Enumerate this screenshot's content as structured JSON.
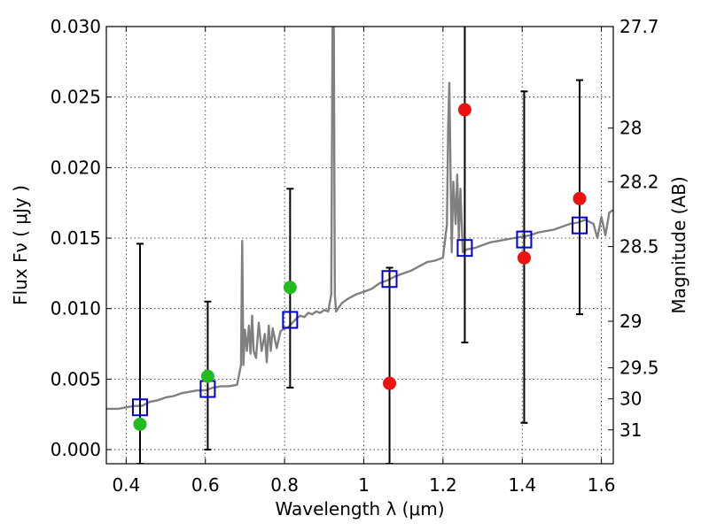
{
  "chart_data": {
    "type": "scatter",
    "xlabel": "Wavelength  λ (μm)",
    "ylabel": "Flux  Fν  ( μJy )",
    "ylabel_right": "Magnitude (AB)",
    "xlim": [
      0.35,
      1.63
    ],
    "ylim": [
      -0.001,
      0.03
    ],
    "x_ticks": [
      0.4,
      0.6,
      0.8,
      1.0,
      1.2,
      1.4,
      1.6
    ],
    "x_tick_labels": [
      "0.4",
      "0.6",
      "0.8",
      "1",
      "1.2",
      "1.4",
      "1.6"
    ],
    "y_ticks": [
      0.0,
      0.005,
      0.01,
      0.015,
      0.02,
      0.025,
      0.03
    ],
    "y_tick_labels": [
      "0.000",
      "0.005",
      "0.010",
      "0.015",
      "0.020",
      "0.025",
      "0.030"
    ],
    "right_ticks": [
      {
        "label": "27.7",
        "flux": 0.03
      },
      {
        "label": "28",
        "flux": 0.0228
      },
      {
        "label": "28.2",
        "flux": 0.019
      },
      {
        "label": "28.5",
        "flux": 0.0144
      },
      {
        "label": "29",
        "flux": 0.0091
      },
      {
        "label": "29.5",
        "flux": 0.0058
      },
      {
        "label": "30",
        "flux": 0.0036
      },
      {
        "label": "31",
        "flux": 0.0014
      }
    ],
    "grid": true,
    "colors": {
      "spectrum": "#808080",
      "green": "#22bb22",
      "red": "#ee1111",
      "model": "#0000cc",
      "errorbar": "#000000"
    },
    "model_points": [
      {
        "x": 0.435,
        "y": 0.003
      },
      {
        "x": 0.606,
        "y": 0.0043
      },
      {
        "x": 0.814,
        "y": 0.0092
      },
      {
        "x": 1.065,
        "y": 0.0121
      },
      {
        "x": 1.255,
        "y": 0.0143
      },
      {
        "x": 1.405,
        "y": 0.0149
      },
      {
        "x": 1.545,
        "y": 0.0159
      }
    ],
    "observed_points": [
      {
        "x": 0.435,
        "y": 0.0018,
        "err_low": -0.001,
        "err_high": 0.0146,
        "color": "green"
      },
      {
        "x": 0.606,
        "y": 0.0052,
        "err_low": 0.0,
        "err_high": 0.0105,
        "color": "green"
      },
      {
        "x": 0.814,
        "y": 0.0115,
        "err_low": 0.0044,
        "err_high": 0.0185,
        "color": "green"
      },
      {
        "x": 1.065,
        "y": 0.0047,
        "err_low": -0.001,
        "err_high": 0.0129,
        "color": "red"
      },
      {
        "x": 1.255,
        "y": 0.0241,
        "err_low": 0.0076,
        "err_high": 0.031,
        "color": "red"
      },
      {
        "x": 1.405,
        "y": 0.0136,
        "err_low": 0.0019,
        "err_high": 0.0254,
        "color": "red"
      },
      {
        "x": 1.545,
        "y": 0.0178,
        "err_low": 0.0096,
        "err_high": 0.0262,
        "color": "red"
      }
    ],
    "spectrum": {
      "x": [
        0.35,
        0.38,
        0.4,
        0.42,
        0.44,
        0.46,
        0.48,
        0.5,
        0.52,
        0.54,
        0.56,
        0.58,
        0.6,
        0.62,
        0.64,
        0.66,
        0.68,
        0.69,
        0.693,
        0.696,
        0.7,
        0.705,
        0.71,
        0.714,
        0.718,
        0.722,
        0.728,
        0.735,
        0.742,
        0.75,
        0.755,
        0.76,
        0.765,
        0.77,
        0.78,
        0.79,
        0.8,
        0.81,
        0.82,
        0.83,
        0.84,
        0.85,
        0.86,
        0.87,
        0.88,
        0.89,
        0.9,
        0.91,
        0.918,
        0.921,
        0.924,
        0.927,
        0.93,
        0.935,
        0.945,
        0.96,
        0.98,
        1.0,
        1.02,
        1.04,
        1.06,
        1.08,
        1.1,
        1.12,
        1.14,
        1.16,
        1.18,
        1.2,
        1.21,
        1.213,
        1.216,
        1.219,
        1.222,
        1.226,
        1.232,
        1.236,
        1.24,
        1.244,
        1.25,
        1.26,
        1.28,
        1.3,
        1.32,
        1.34,
        1.36,
        1.38,
        1.4,
        1.42,
        1.44,
        1.46,
        1.48,
        1.5,
        1.52,
        1.54,
        1.56,
        1.58,
        1.59,
        1.6,
        1.61,
        1.62,
        1.63
      ],
      "y": [
        0.0029,
        0.0029,
        0.003,
        0.0031,
        0.0031,
        0.0034,
        0.0035,
        0.0037,
        0.0038,
        0.004,
        0.0041,
        0.0042,
        0.0042,
        0.0044,
        0.0045,
        0.0045,
        0.0046,
        0.006,
        0.0148,
        0.006,
        0.0085,
        0.007,
        0.0088,
        0.0068,
        0.0095,
        0.007,
        0.0065,
        0.009,
        0.007,
        0.0082,
        0.0062,
        0.0088,
        0.007,
        0.0086,
        0.0072,
        0.0084,
        0.0086,
        0.0087,
        0.009,
        0.0093,
        0.0095,
        0.0094,
        0.0097,
        0.0096,
        0.0098,
        0.0097,
        0.0099,
        0.0098,
        0.011,
        0.03,
        0.033,
        0.011,
        0.0098,
        0.01,
        0.0104,
        0.0107,
        0.011,
        0.0112,
        0.0114,
        0.0118,
        0.012,
        0.0123,
        0.0125,
        0.0127,
        0.013,
        0.0133,
        0.0134,
        0.0136,
        0.016,
        0.023,
        0.026,
        0.02,
        0.014,
        0.019,
        0.016,
        0.0195,
        0.015,
        0.0185,
        0.014,
        0.0142,
        0.0143,
        0.0145,
        0.0147,
        0.0148,
        0.0149,
        0.015,
        0.0151,
        0.0152,
        0.0154,
        0.0155,
        0.0156,
        0.0158,
        0.016,
        0.0161,
        0.0163,
        0.016,
        0.015,
        0.0165,
        0.0152,
        0.0168,
        0.017
      ]
    }
  }
}
